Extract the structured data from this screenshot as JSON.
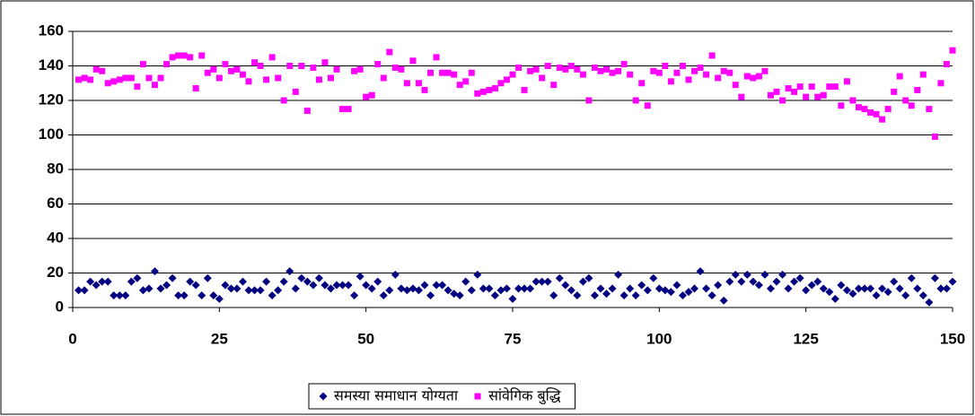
{
  "chart_data": {
    "type": "scatter",
    "x": [
      1,
      2,
      3,
      4,
      5,
      6,
      7,
      8,
      9,
      10,
      11,
      12,
      13,
      14,
      15,
      16,
      17,
      18,
      19,
      20,
      21,
      22,
      23,
      24,
      25,
      26,
      27,
      28,
      29,
      30,
      31,
      32,
      33,
      34,
      35,
      36,
      37,
      38,
      39,
      40,
      41,
      42,
      43,
      44,
      45,
      46,
      47,
      48,
      49,
      50,
      51,
      52,
      53,
      54,
      55,
      56,
      57,
      58,
      59,
      60,
      61,
      62,
      63,
      64,
      65,
      66,
      67,
      68,
      69,
      70,
      71,
      72,
      73,
      74,
      75,
      76,
      77,
      78,
      79,
      80,
      81,
      82,
      83,
      84,
      85,
      86,
      87,
      88,
      89,
      90,
      91,
      92,
      93,
      94,
      95,
      96,
      97,
      98,
      99,
      100,
      101,
      102,
      103,
      104,
      105,
      106,
      107,
      108,
      109,
      110,
      111,
      112,
      113,
      114,
      115,
      116,
      117,
      118,
      119,
      120,
      121,
      122,
      123,
      124,
      125,
      126,
      127,
      128,
      129,
      130,
      131,
      132,
      133,
      134,
      135,
      136,
      137,
      138,
      139,
      140,
      141,
      142,
      143,
      144,
      145,
      146,
      147,
      148,
      149,
      150
    ],
    "series": [
      {
        "name": "समस्या समाधान योग्यता",
        "color": "#000080",
        "marker": "diamond",
        "values": [
          10,
          10,
          15,
          13,
          15,
          15,
          7,
          7,
          7,
          15,
          17,
          10,
          11,
          21,
          11,
          13,
          17,
          7,
          7,
          15,
          13,
          7,
          17,
          7,
          5,
          13,
          11,
          11,
          15,
          10,
          10,
          10,
          15,
          7,
          10,
          15,
          21,
          11,
          17,
          15,
          13,
          17,
          13,
          11,
          13,
          13,
          13,
          7,
          18,
          13,
          11,
          15,
          7,
          10,
          19,
          11,
          10,
          11,
          10,
          13,
          7,
          13,
          13,
          10,
          8,
          7,
          15,
          10,
          19,
          11,
          11,
          7,
          10,
          11,
          5,
          11,
          11,
          11,
          15,
          15,
          15,
          7,
          17,
          13,
          10,
          7,
          15,
          17,
          7,
          11,
          8,
          11,
          19,
          7,
          11,
          7,
          13,
          10,
          17,
          11,
          10,
          9,
          13,
          7,
          9,
          11,
          21,
          11,
          7,
          13,
          4,
          15,
          19,
          15,
          19,
          15,
          13,
          19,
          11,
          15,
          19,
          11,
          15,
          17,
          10,
          13,
          15,
          11,
          9,
          5,
          13,
          10,
          8,
          11,
          11,
          11,
          7,
          11,
          9,
          15,
          11,
          7,
          17,
          11,
          7,
          3,
          17,
          11,
          11,
          15
        ]
      },
      {
        "name": "सांवेगिक बुद्धि",
        "color": "#ff00ff",
        "marker": "square",
        "values": [
          132,
          133,
          132,
          138,
          137,
          130,
          131,
          132,
          133,
          133,
          128,
          141,
          133,
          129,
          133,
          141,
          145,
          146,
          146,
          145,
          127,
          146,
          136,
          138,
          133,
          141,
          137,
          138,
          135,
          131,
          142,
          140,
          132,
          145,
          133,
          120,
          140,
          125,
          140,
          114,
          139,
          132,
          142,
          133,
          138,
          115,
          115,
          137,
          138,
          122,
          123,
          141,
          133,
          148,
          139,
          138,
          130,
          143,
          130,
          126,
          136,
          145,
          136,
          136,
          135,
          129,
          131,
          136,
          124,
          125,
          126,
          127,
          130,
          132,
          135,
          139,
          126,
          137,
          138,
          133,
          140,
          129,
          139,
          138,
          140,
          138,
          135,
          120,
          139,
          137,
          138,
          136,
          137,
          141,
          135,
          120,
          130,
          117,
          137,
          136,
          140,
          131,
          136,
          140,
          132,
          137,
          139,
          135,
          146,
          133,
          137,
          136,
          129,
          122,
          134,
          133,
          134,
          137,
          123,
          125,
          120,
          127,
          125,
          128,
          122,
          128,
          122,
          123,
          128,
          128,
          117,
          131,
          120,
          116,
          115,
          113,
          112,
          109,
          115,
          125,
          134,
          120,
          117,
          126,
          135,
          115,
          99,
          130,
          141,
          149
        ]
      }
    ],
    "xlim": [
      0,
      150
    ],
    "xticks": [
      0,
      25,
      50,
      75,
      100,
      125,
      150
    ],
    "ylim": [
      0,
      160
    ],
    "yticks": [
      0,
      20,
      40,
      60,
      80,
      100,
      120,
      140,
      160
    ],
    "grid": true,
    "legend": "bottom"
  }
}
